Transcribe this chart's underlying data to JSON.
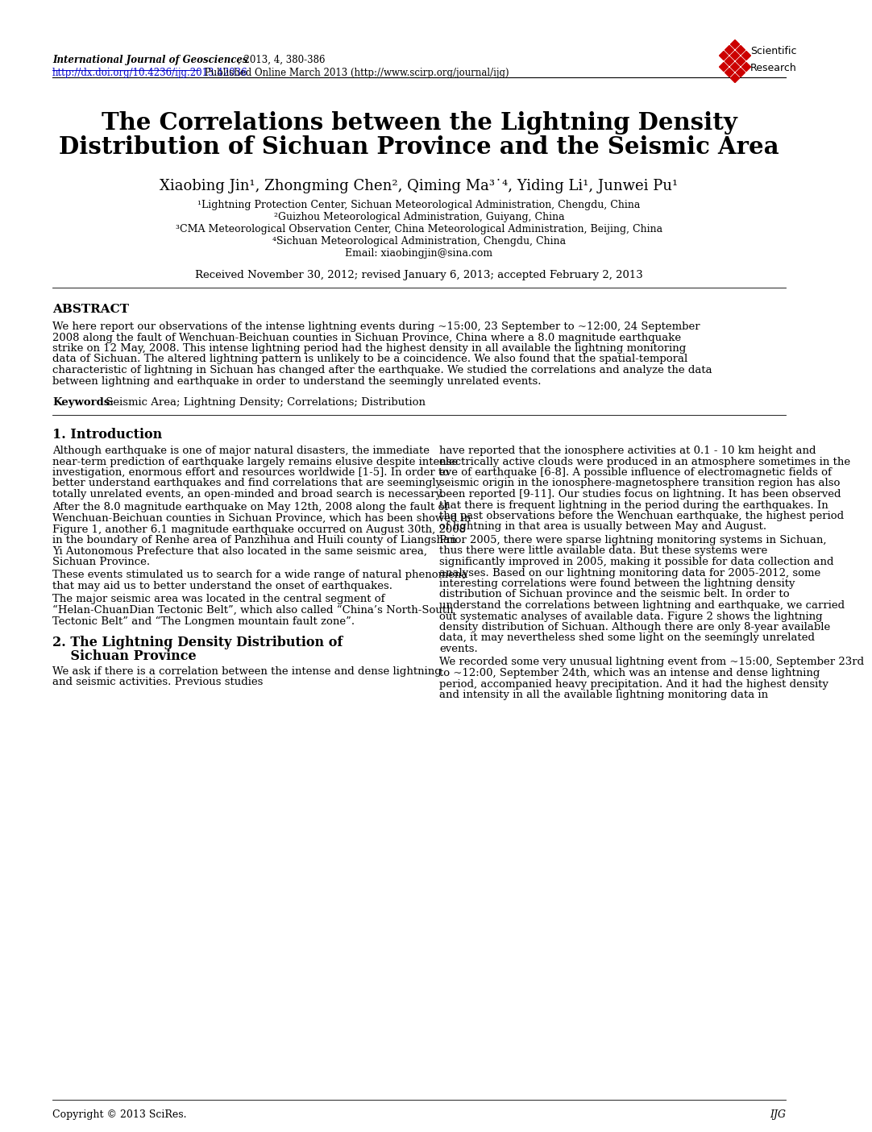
{
  "journal_italic": "International Journal of Geosciences",
  "journal_rest": ", 2013, 4, 380-386",
  "journal_url": "http://dx.doi.org/10.4236/ijg.2013.42036",
  "journal_line2_suffix": " Published Online March 2013 (http://www.scirp.org/journal/ijg)",
  "title_line1": "The Correlations between the Lightning Density",
  "title_line2": "Distribution of Sichuan Province and the Seismic Area",
  "authors": "Xiaobing Jin¹, Zhongming Chen², Qiming Ma³˙⁴, Yiding Li¹, Junwei Pu¹",
  "affil1": "¹Lightning Protection Center, Sichuan Meteorological Administration, Chengdu, China",
  "affil2": "²Guizhou Meteorological Administration, Guiyang, China",
  "affil3": "³CMA Meteorological Observation Center, China Meteorological Administration, Beijing, China",
  "affil4": "⁴Sichuan Meteorological Administration, Chengdu, China",
  "email": "Email: xiaobingjin@sina.com",
  "received": "Received November 30, 2012; revised January 6, 2013; accepted February 2, 2013",
  "abstract_title": "ABSTRACT",
  "keywords_label": "Keywords:",
  "keywords_text": " Seismic Area; Lightning Density; Correlations; Distribution",
  "section1_title": "1. Introduction",
  "section2_title_line1": "2. The Lightning Density Distribution of",
  "section2_title_line2": "    Sichuan Province",
  "copyright": "Copyright © 2013 SciRes.",
  "journal_abbrev": "IJG",
  "background_color": "#ffffff",
  "text_color": "#000000",
  "link_color": "#0000cc",
  "abstract_lines": [
    "We here report our observations of the intense lightning events during ~15:00, 23 September to ~12:00, 24 September",
    "2008 along the fault of Wenchuan-Beichuan counties in Sichuan Province, China where a 8.0 magnitude earthquake",
    "strike on 12 May, 2008. This intense lightning period had the highest density in all available the lightning monitoring",
    "data of Sichuan. The altered lightning pattern is unlikely to be a coincidence. We also found that the spatial-temporal",
    "characteristic of lightning in Sichuan has changed after the earthquake. We studied the correlations and analyze the data",
    "between lightning and earthquake in order to understand the seemingly unrelated events."
  ],
  "left_col_paras": [
    [
      "",
      "Although earthquake is one of major natural disasters, the immediate near-term prediction of earthquake largely remains elusive despite intense investigation, enormous effort and resources worldwide [1-5]. In order to better understand earthquakes and find correlations that are seemingly totally unrelated events, an open-minded and broad search is necessary."
    ],
    [
      "    ",
      "After the 8.0 magnitude earthquake on May 12th, 2008 along the fault of Wenchuan-Beichuan counties in Sichuan Province, which has been showed in Figure 1, another 6.1 magnitude earthquake occurred on August 30th, 2008 in the boundary of Renhe area of Panzhihua and Huili county of Liangshan Yi Autonomous Prefecture that also located in the same seismic area, Sichuan Province."
    ],
    [
      "    ",
      "These events stimulated us to search for a wide range of natural phenomena that may aid us to better understand the onset of earthquakes."
    ],
    [
      "    ",
      "The major seismic area was located in the central segment of “Helan-ChuanDian Tectonic Belt”, which also called “China’s North-South Tectonic Belt” and “The Longmen mountain fault zone”."
    ]
  ],
  "left_col_sec2_para": [
    "",
    "We ask if there is a correlation between the intense and dense lightning and seismic activities. Previous studies"
  ],
  "right_col_paras": [
    [
      "",
      "have reported that the ionosphere activities at 0.1 - 10 km height and electrically active clouds were produced in an atmosphere sometimes in the eve of earthquake [6-8]. A possible influence of electromagnetic fields of seismic origin in the ionosphere-magnetosphere transition region has also been reported [9-11]. Our studies focus on lightning. It has been observed that there is frequent lightning in the period during the earthquakes. In the past observations before the Wenchuan earthquake, the highest period of lightning in that area is usually between May and August."
    ],
    [
      "    ",
      "Prior 2005, there were sparse lightning monitoring systems in Sichuan, thus there were little available data. But these systems were significantly improved in 2005, making it possible for data collection and analyses. Based on our lightning monitoring data for 2005-2012, some interesting correlations were found between the lightning density distribution of Sichuan province and the seismic belt. In order to understand the correlations between lightning and earthquake, we carried out systematic analyses of available data. Figure 2 shows the lightning density distribution of Sichuan. Although there are only 8-year available data, it may nevertheless shed some light on the seemingly unrelated events."
    ],
    [
      "    ",
      "We recorded some very unusual lightning event from ~15:00, September 23rd to ~12:00, September 24th, which was an intense and dense lightning period, accompanied heavy precipitation. And it had the highest density and intensity in all the available lightning monitoring data in"
    ]
  ]
}
